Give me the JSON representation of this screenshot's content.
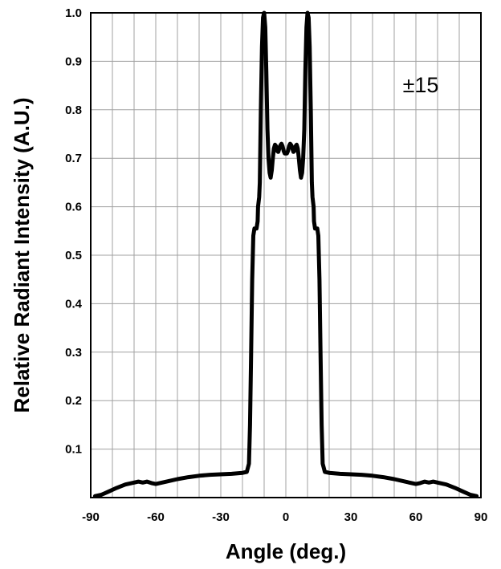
{
  "chart_data": {
    "type": "line",
    "title": "",
    "xlabel": "Angle (deg.)",
    "ylabel": "Relative Radiant Intensity (A.U.)",
    "xlim": [
      -90,
      90
    ],
    "ylim": [
      0,
      1.0
    ],
    "x_ticks": [
      "-90",
      "-60",
      "-30",
      "0",
      "30",
      "60",
      "90"
    ],
    "y_ticks": [
      "0.1",
      "0.2",
      "0.3",
      "0.4",
      "0.5",
      "0.6",
      "0.7",
      "0.8",
      "0.9",
      "1.0"
    ],
    "grid": true,
    "annotation": "±15",
    "series": [
      {
        "x": [
          -88,
          -85,
          -82,
          -78,
          -74,
          -70,
          -68,
          -66,
          -64,
          -62,
          -60,
          -55,
          -50,
          -45,
          -40,
          -35,
          -30,
          -25,
          -20,
          -18,
          -17,
          -16.5,
          -16,
          -15.5,
          -15,
          -14.5,
          -14,
          -13.5,
          -13,
          -12.8,
          -12.3,
          -12,
          -11.5,
          -11,
          -10.5,
          -10,
          -9.5,
          -9,
          -8.5,
          -8,
          -7.5,
          -7,
          -6.5,
          -6,
          -5.5,
          -5,
          -4.5,
          -4,
          -3.5,
          -3,
          -2.5,
          -2,
          -1.5,
          -1,
          -0.5,
          0,
          0.5,
          1,
          1.5,
          2,
          2.5,
          3,
          3.5,
          4,
          4.5,
          5,
          5.5,
          6,
          6.5,
          7,
          7.5,
          8,
          8.5,
          9,
          9.5,
          10,
          10.5,
          11,
          11.5,
          12,
          12.3,
          12.8,
          13,
          13.5,
          14,
          14.5,
          15,
          15.5,
          16,
          16.5,
          17,
          18,
          20,
          25,
          30,
          35,
          40,
          45,
          50,
          55,
          60,
          62,
          64,
          66,
          68,
          70,
          74,
          78,
          82,
          85,
          88
        ],
        "y": [
          0.003,
          0.006,
          0.012,
          0.02,
          0.027,
          0.031,
          0.033,
          0.031,
          0.033,
          0.03,
          0.028,
          0.033,
          0.038,
          0.042,
          0.045,
          0.047,
          0.048,
          0.049,
          0.051,
          0.053,
          0.07,
          0.15,
          0.3,
          0.45,
          0.54,
          0.555,
          0.555,
          0.555,
          0.57,
          0.6,
          0.62,
          0.65,
          0.8,
          0.93,
          0.99,
          1.0,
          0.97,
          0.88,
          0.76,
          0.7,
          0.67,
          0.66,
          0.675,
          0.7,
          0.72,
          0.728,
          0.725,
          0.715,
          0.713,
          0.72,
          0.727,
          0.73,
          0.725,
          0.715,
          0.71,
          0.71,
          0.71,
          0.715,
          0.725,
          0.73,
          0.727,
          0.72,
          0.713,
          0.715,
          0.725,
          0.728,
          0.72,
          0.7,
          0.675,
          0.66,
          0.67,
          0.7,
          0.76,
          0.88,
          0.97,
          1.0,
          0.99,
          0.93,
          0.8,
          0.65,
          0.62,
          0.6,
          0.57,
          0.555,
          0.555,
          0.555,
          0.54,
          0.45,
          0.3,
          0.15,
          0.07,
          0.053,
          0.051,
          0.049,
          0.048,
          0.047,
          0.045,
          0.042,
          0.038,
          0.033,
          0.028,
          0.03,
          0.033,
          0.031,
          0.033,
          0.031,
          0.027,
          0.02,
          0.012,
          0.006,
          0.003
        ]
      }
    ]
  }
}
